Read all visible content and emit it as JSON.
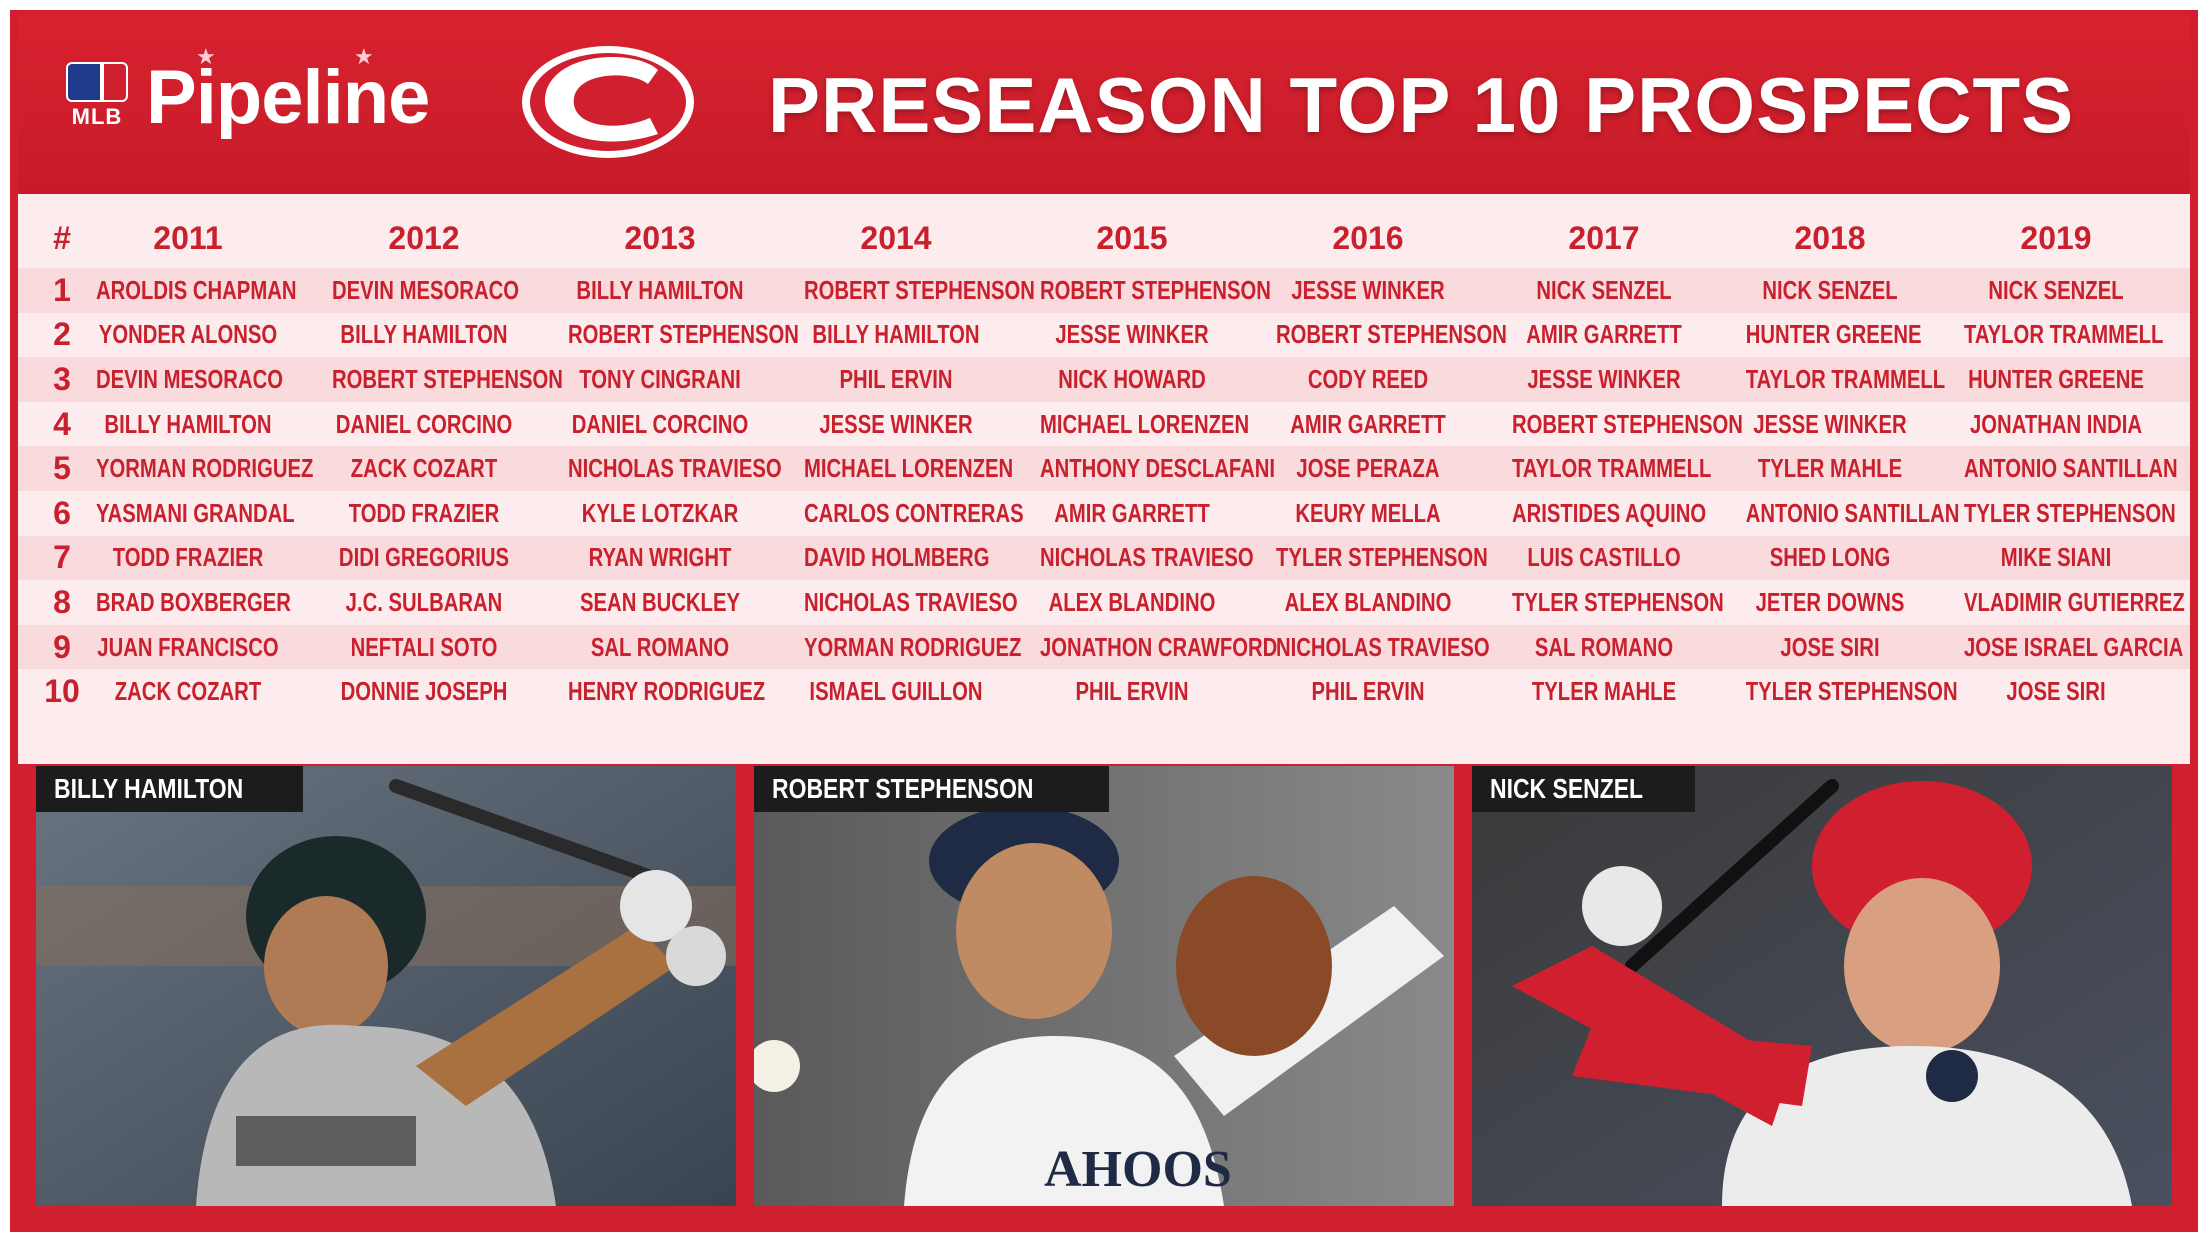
{
  "header": {
    "mlb_label": "MLB",
    "pipeline_label": "Pipeline",
    "title": "PRESEASON TOP 10 PROSPECTS"
  },
  "colors": {
    "brand_red": "#d0202f",
    "table_bg": "#fdecee",
    "table_alt": "#f9dadd",
    "text_red": "#c8202d"
  },
  "table": {
    "rank_header": "#",
    "years": [
      "2011",
      "2012",
      "2013",
      "2014",
      "2015",
      "2016",
      "2017",
      "2018",
      "2019"
    ],
    "rows": [
      {
        "rank": "1",
        "names": [
          "AROLDIS CHAPMAN",
          "DEVIN MESORACO",
          "BILLY HAMILTON",
          "ROBERT STEPHENSON",
          "ROBERT STEPHENSON",
          "JESSE WINKER",
          "NICK SENZEL",
          "NICK SENZEL",
          "NICK SENZEL"
        ]
      },
      {
        "rank": "2",
        "names": [
          "YONDER ALONSO",
          "BILLY HAMILTON",
          "ROBERT STEPHENSON",
          "BILLY HAMILTON",
          "JESSE WINKER",
          "ROBERT STEPHENSON",
          "AMIR GARRETT",
          "HUNTER GREENE",
          "TAYLOR TRAMMELL"
        ]
      },
      {
        "rank": "3",
        "names": [
          "DEVIN MESORACO",
          "ROBERT STEPHENSON",
          "TONY CINGRANI",
          "PHIL ERVIN",
          "NICK HOWARD",
          "CODY REED",
          "JESSE WINKER",
          "TAYLOR TRAMMELL",
          "HUNTER GREENE"
        ]
      },
      {
        "rank": "4",
        "names": [
          "BILLY HAMILTON",
          "DANIEL CORCINO",
          "DANIEL CORCINO",
          "JESSE WINKER",
          "MICHAEL LORENZEN",
          "AMIR GARRETT",
          "ROBERT STEPHENSON",
          "JESSE WINKER",
          "JONATHAN INDIA"
        ]
      },
      {
        "rank": "5",
        "names": [
          "YORMAN RODRIGUEZ",
          "ZACK COZART",
          "NICHOLAS TRAVIESO",
          "MICHAEL LORENZEN",
          "ANTHONY DESCLAFANI",
          "JOSE PERAZA",
          "TAYLOR TRAMMELL",
          "TYLER MAHLE",
          "ANTONIO SANTILLAN"
        ]
      },
      {
        "rank": "6",
        "names": [
          "YASMANI GRANDAL",
          "TODD FRAZIER",
          "KYLE LOTZKAR",
          "CARLOS CONTRERAS",
          "AMIR GARRETT",
          "KEURY MELLA",
          "ARISTIDES AQUINO",
          "ANTONIO SANTILLAN",
          "TYLER STEPHENSON"
        ]
      },
      {
        "rank": "7",
        "names": [
          "TODD FRAZIER",
          "DIDI GREGORIUS",
          "RYAN WRIGHT",
          "DAVID HOLMBERG",
          "NICHOLAS TRAVIESO",
          "TYLER STEPHENSON",
          "LUIS CASTILLO",
          "SHED LONG",
          "MIKE SIANI"
        ]
      },
      {
        "rank": "8",
        "names": [
          "BRAD BOXBERGER",
          "J.C. SULBARAN",
          "SEAN BUCKLEY",
          "NICHOLAS TRAVIESO",
          "ALEX BLANDINO",
          "ALEX BLANDINO",
          "TYLER STEPHENSON",
          "JETER DOWNS",
          "VLADIMIR GUTIERREZ"
        ]
      },
      {
        "rank": "9",
        "names": [
          "JUAN FRANCISCO",
          "NEFTALI SOTO",
          "SAL ROMANO",
          "YORMAN RODRIGUEZ",
          "JONATHON CRAWFORD",
          "NICHOLAS TRAVIESO",
          "SAL ROMANO",
          "JOSE SIRI",
          "JOSE ISRAEL GARCIA"
        ]
      },
      {
        "rank": "10",
        "names": [
          "ZACK COZART",
          "DONNIE JOSEPH",
          "HENRY RODRIGUEZ",
          "ISMAEL GUILLON",
          "PHIL ERVIN",
          "PHIL ERVIN",
          "TYLER MAHLE",
          "TYLER STEPHENSON",
          "JOSE SIRI"
        ]
      }
    ]
  },
  "photos": [
    {
      "label": "BILLY HAMILTON"
    },
    {
      "label": "ROBERT STEPHENSON",
      "jersey_text": "AHOOS"
    },
    {
      "label": "NICK SENZEL"
    }
  ]
}
